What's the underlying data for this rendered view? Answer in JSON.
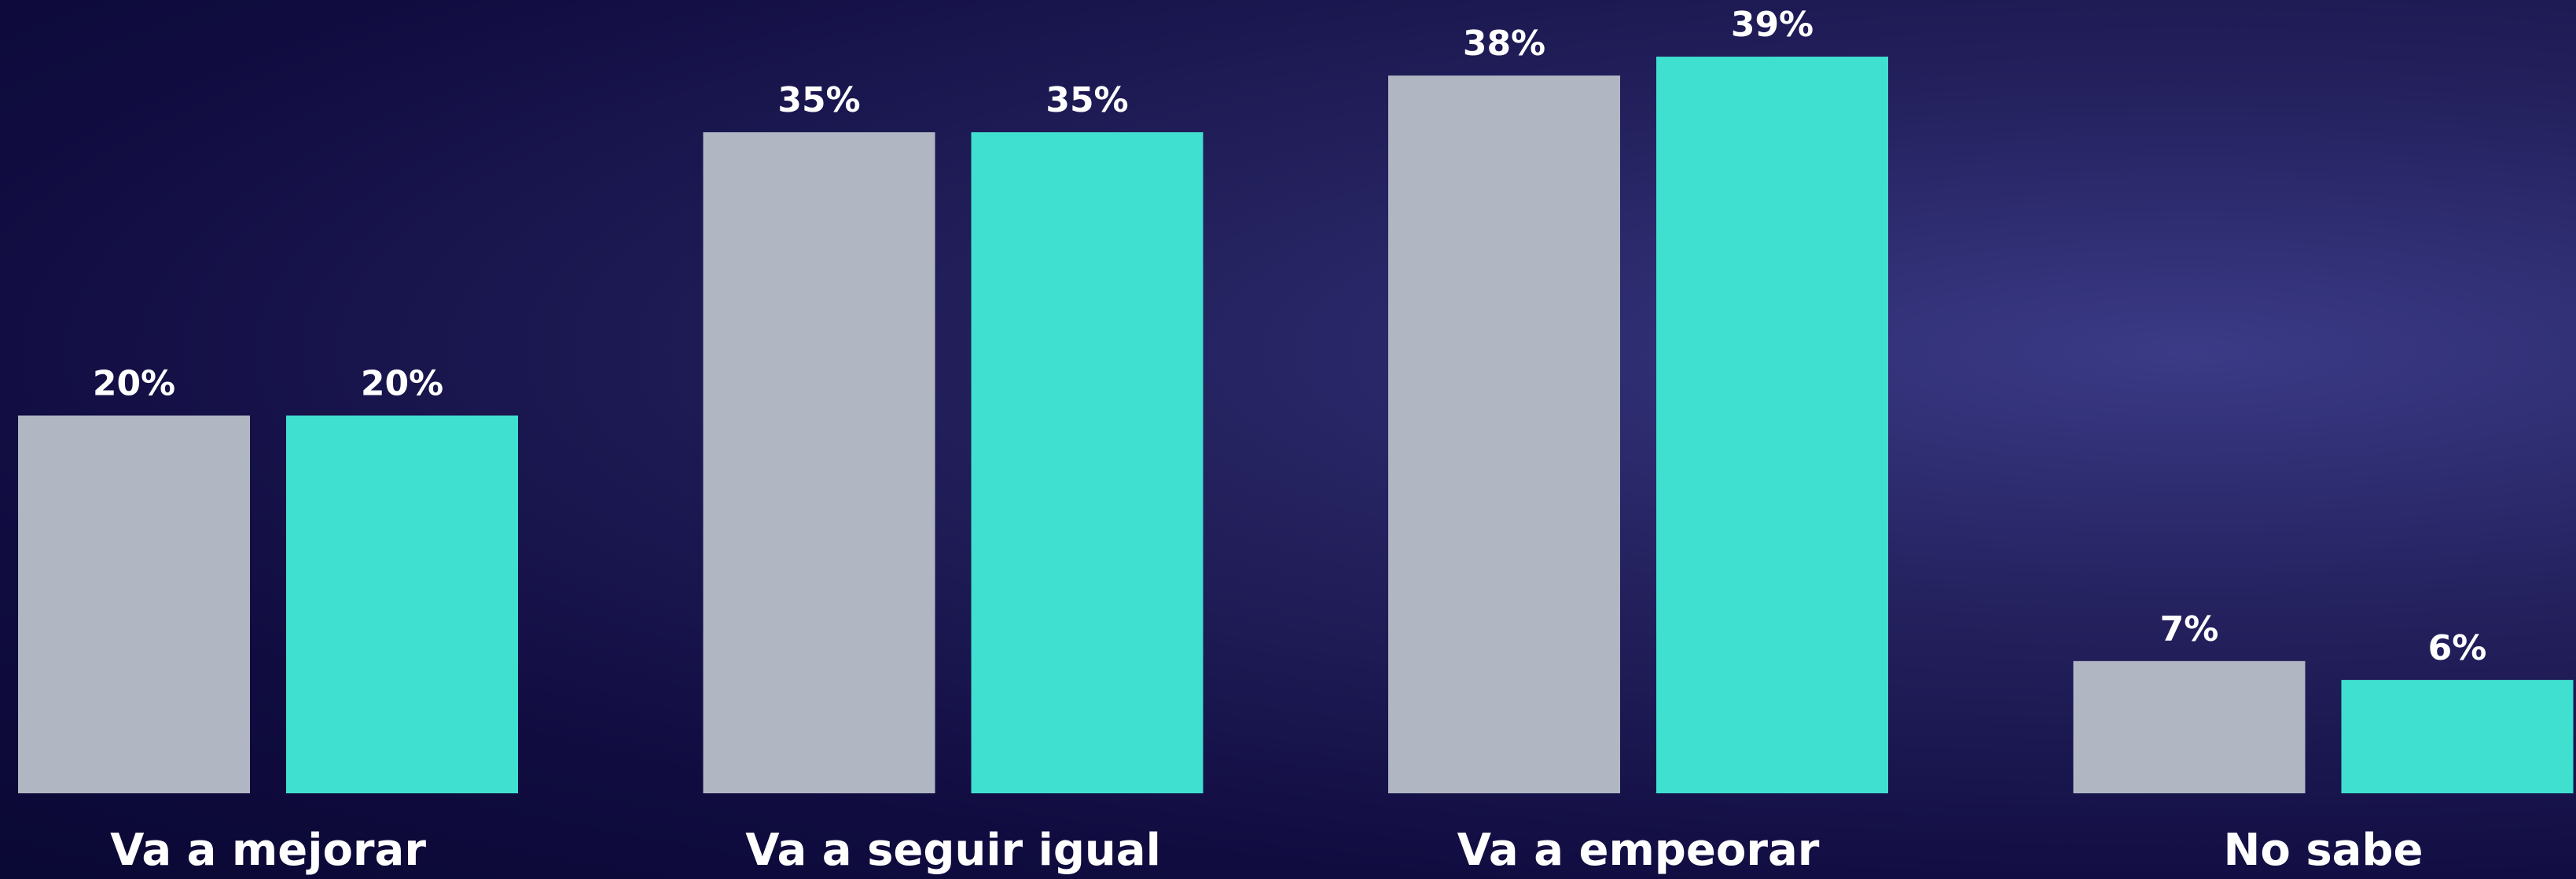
{
  "chart_data": {
    "type": "bar",
    "categories": [
      "Va a mejorar",
      "Va a seguir igual",
      "Va a empeorar",
      "No sabe"
    ],
    "series": [
      {
        "color": "#b0b7c3",
        "values": [
          20,
          35,
          38,
          7
        ],
        "value_labels": [
          "20%",
          "35%",
          "38%",
          "7%"
        ]
      },
      {
        "color": "#40e0d0",
        "values": [
          20,
          35,
          39,
          6
        ],
        "value_labels": [
          "20%",
          "35%",
          "39%",
          "6%"
        ]
      }
    ],
    "ylim": [
      0,
      42
    ]
  }
}
